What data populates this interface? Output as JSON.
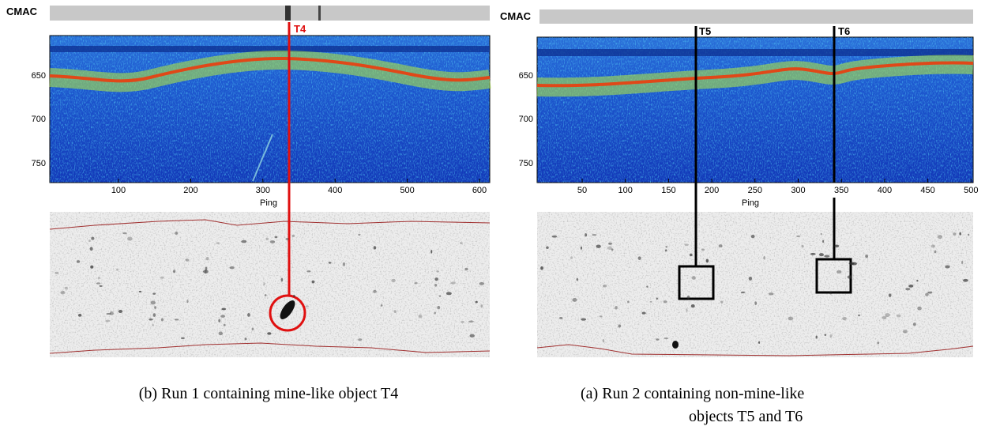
{
  "panels": [
    {
      "bar_label": "CMAC",
      "targets": [
        "T4"
      ],
      "y_ticks": [
        "650",
        "700",
        "750"
      ],
      "x_ticks": [
        "100",
        "200",
        "300",
        "400",
        "500",
        "600"
      ],
      "x_label": "Ping",
      "caption": [
        "(b)  Run 1 containing mine-like object T4"
      ]
    },
    {
      "bar_label": "CMAC",
      "targets": [
        "T5",
        "T6"
      ],
      "y_ticks": [
        "650",
        "700",
        "750"
      ],
      "x_ticks": [
        "50",
        "100",
        "150",
        "200",
        "250",
        "300",
        "350",
        "400",
        "450",
        "500"
      ],
      "x_label": "Ping",
      "caption": [
        "(a)  Run 2 containing non-mine-like",
        "objects T5 and T6"
      ]
    }
  ]
}
